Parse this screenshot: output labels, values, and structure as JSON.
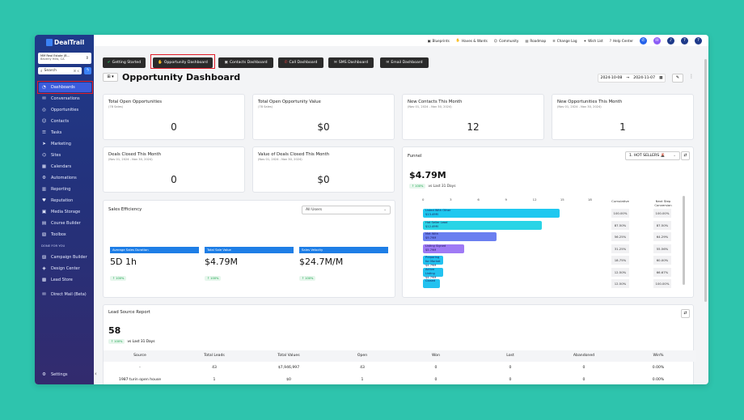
{
  "app": {
    "name": "DealTrail"
  },
  "sidebar": {
    "location_name": "MM Real Estate (B...",
    "location_city": "Beverly Hills, CA",
    "search_placeholder": "Search",
    "search_shortcut": "⌘ K",
    "items": [
      {
        "label": "Dashboards",
        "icon": "dashboard-icon",
        "active": true
      },
      {
        "label": "Conversations",
        "icon": "chat-icon"
      },
      {
        "label": "Opportunities",
        "icon": "opportunities-icon"
      },
      {
        "label": "Contacts",
        "icon": "contacts-icon"
      },
      {
        "label": "Tasks",
        "icon": "tasks-icon"
      },
      {
        "label": "Marketing",
        "icon": "marketing-icon"
      },
      {
        "label": "Sites",
        "icon": "sites-icon"
      },
      {
        "label": "Calendars",
        "icon": "calendar-icon"
      },
      {
        "label": "Automations",
        "icon": "automations-icon"
      },
      {
        "label": "Reporting",
        "icon": "reporting-icon"
      },
      {
        "label": "Reputation",
        "icon": "reputation-icon"
      },
      {
        "label": "Media Storage",
        "icon": "media-icon"
      },
      {
        "label": "Course Builder",
        "icon": "course-icon"
      },
      {
        "label": "Toolbox",
        "icon": "toolbox-icon"
      }
    ],
    "group_label": "DONE FOR YOU",
    "group_items": [
      {
        "label": "Campaign Builder",
        "icon": "campaign-icon"
      },
      {
        "label": "Design Center",
        "icon": "design-icon"
      },
      {
        "label": "Lead Store",
        "icon": "store-icon"
      }
    ],
    "extra_item": {
      "label": "Direct Mail (Beta)",
      "icon": "mail-icon"
    },
    "settings_label": "Settings"
  },
  "topbar": {
    "links": [
      "Blueprints",
      "Haves & Wants",
      "Community",
      "Roadmap",
      "Change Log",
      "Wish List",
      "Help Center"
    ],
    "avatar_initial": "?"
  },
  "tabs": [
    "Getting Started",
    "Opportunity Dashboard",
    "Contacts Dashboard",
    "Call Dashboard",
    "SMS Dashboard",
    "Email Dashboard"
  ],
  "page": {
    "title": "Opportunity Dashboard",
    "date_from": "2024-10-08",
    "date_to": "2024-11-07"
  },
  "cards": [
    {
      "title": "Total Open Opportunities",
      "subtitle": "(78 Sales)",
      "value": "0"
    },
    {
      "title": "Total Open Opportunity Value",
      "subtitle": "(78 Sales)",
      "value": "$0"
    },
    {
      "title": "New Contacts This Month",
      "subtitle": "(Nov 01, 2024 - Nov 30, 2024)",
      "value": "12"
    },
    {
      "title": "New Opportunities This Month",
      "subtitle": "(Nov 01, 2024 - Nov 30, 2024)",
      "value": "1"
    },
    {
      "title": "Deals Closed This Month",
      "subtitle": "(Nov 01, 2024 - Nov 30, 2024)",
      "value": "0"
    },
    {
      "title": "Value of Deals Closed This Month",
      "subtitle": "(Nov 01, 2024 - Nov 30, 2024)",
      "value": "$0"
    }
  ],
  "sales_efficiency": {
    "title": "Sales Efficiency",
    "filter": "All Users",
    "metrics": [
      {
        "label": "Average Sales Duration",
        "value": "5D 1h",
        "change": "100%"
      },
      {
        "label": "Total Sale Value",
        "value": "$4.79M",
        "change": "100%"
      },
      {
        "label": "Sales Velocity",
        "value": "$24.7M/M",
        "change": "100%"
      }
    ]
  },
  "funnel": {
    "title": "Funnel",
    "pipeline": "1. HOT SELLERS 🌋",
    "total": "$4.79M",
    "change": "100%",
    "vs_label": "vs Last 31 Days",
    "col_cumulative": "Cumulative",
    "col_next_step": "Next Step Conversion"
  },
  "chart_data": {
    "type": "bar",
    "orientation": "horizontal",
    "x_ticks": [
      "0",
      "3",
      "6",
      "9",
      "12",
      "15",
      "18"
    ],
    "categories": [
      "Listed With Other",
      "Hot Seller Lead",
      "Met With",
      "Listing Signed",
      "Preparing for Market",
      "Active Listing",
      "Closed"
    ],
    "value_labels": [
      "$13.49M",
      "$12.49M",
      "$9.79M",
      "$5.79M",
      "$4.79M",
      "$4.79M",
      ""
    ],
    "series": [
      {
        "values": [
          14.8,
          12.9,
          8.0,
          4.5,
          2.2,
          2.2,
          1.8
        ]
      },
      {
        "values": [
          "100.00%",
          "87.50%",
          "56.25%",
          "31.25%",
          "18.75%",
          "12.50%",
          "12.50%"
        ]
      },
      {
        "values": [
          "100.00%",
          "87.50%",
          "64.29%",
          "55.56%",
          "60.00%",
          "66.67%",
          "100.00%"
        ]
      }
    ],
    "colors": [
      "#1ec8f0",
      "#2ad4e6",
      "#6b7ff0",
      "#9f7af5",
      "#23c2f0",
      "#23c2f0",
      "#23c2f0"
    ],
    "xlim": [
      0,
      18
    ]
  },
  "lead_source": {
    "title": "Lead Source Report",
    "total": "58",
    "change": "100%",
    "vs_label": "vs Last 31 Days",
    "columns": [
      "Source",
      "Total Leads",
      "Total Values",
      "Open",
      "Won",
      "Lost",
      "Abandoned",
      "Win%"
    ],
    "rows": [
      [
        "-",
        "43",
        "$7,946,997",
        "43",
        "0",
        "0",
        "0",
        "0.00%"
      ],
      [
        "1987 turin open house",
        "1",
        "$0",
        "1",
        "0",
        "0",
        "0",
        "0.00%"
      ]
    ]
  }
}
